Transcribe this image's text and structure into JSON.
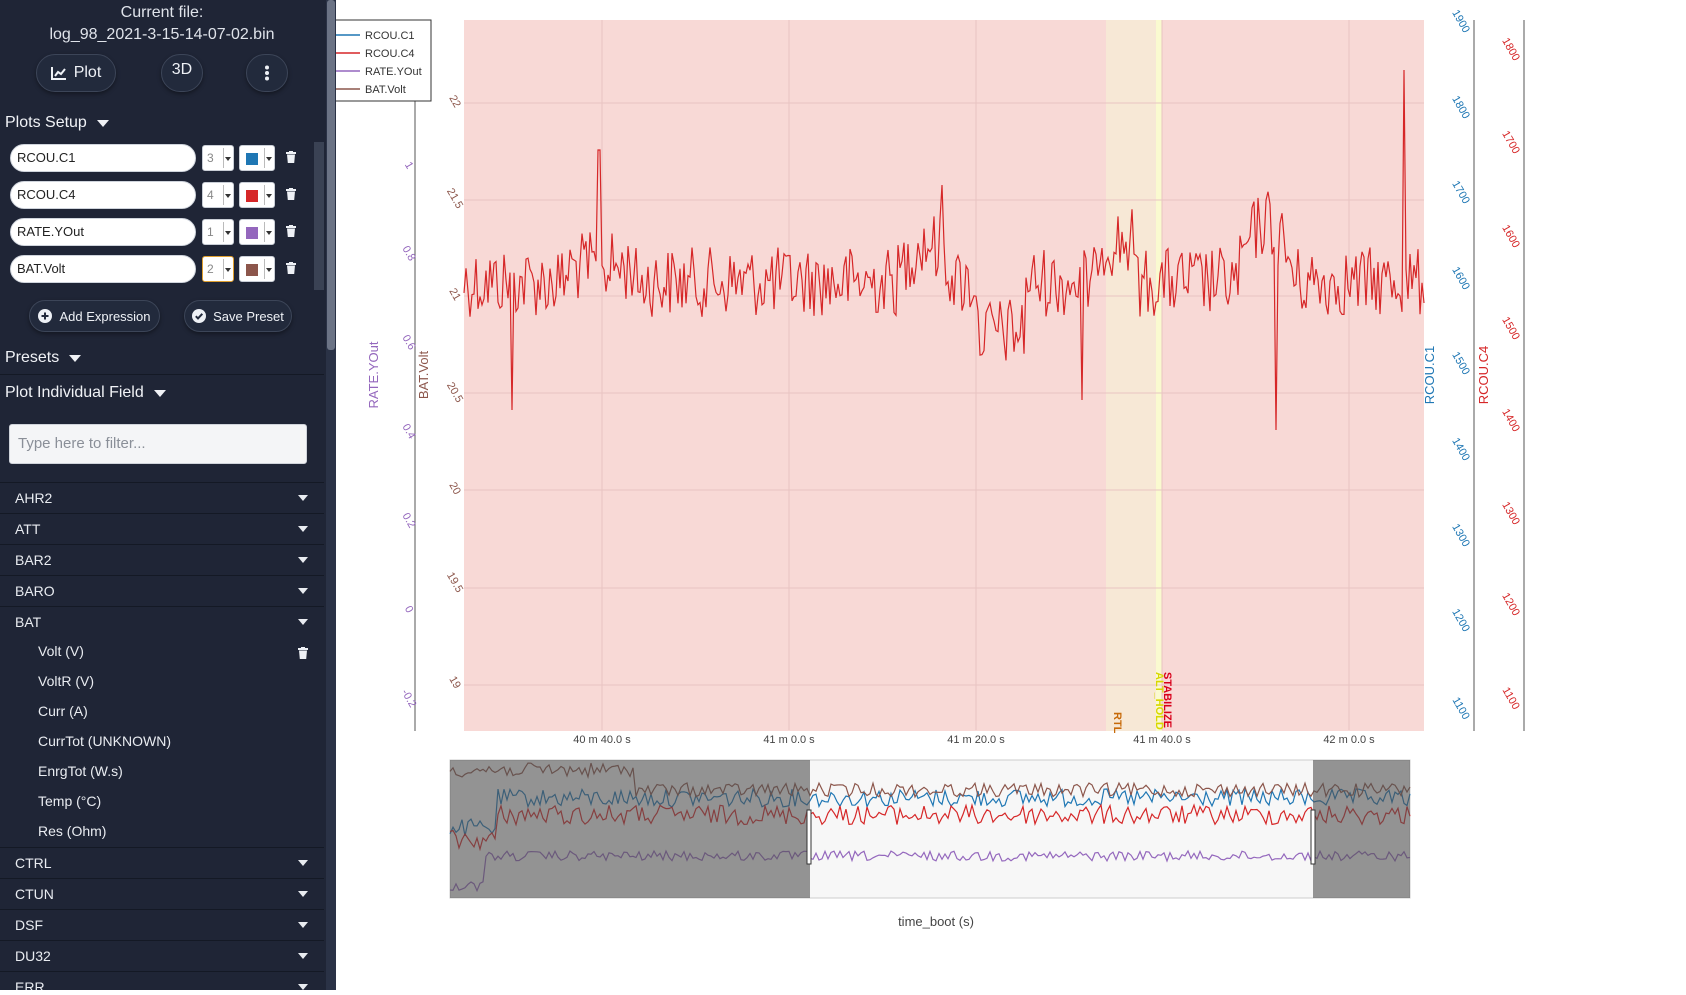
{
  "file": {
    "label": "Current file:",
    "name": "log_98_2021-3-15-14-07-02.bin"
  },
  "buttons": {
    "plot": "Plot",
    "three_d": "3D"
  },
  "plots_setup": {
    "title": "Plots Setup",
    "expressions": [
      {
        "name": "RCOU.C1",
        "axis": "3",
        "color": "#1f77b4"
      },
      {
        "name": "RCOU.C4",
        "axis": "4",
        "color": "#d62728"
      },
      {
        "name": "RATE.YOut",
        "axis": "1",
        "color": "#9467bd"
      },
      {
        "name": "BAT.Volt",
        "axis": "2",
        "color": "#8c564b"
      }
    ],
    "add_expression": "Add Expression",
    "save_preset": "Save Preset"
  },
  "presets": {
    "title": "Presets"
  },
  "individual": {
    "title": "Plot Individual Field",
    "filter_placeholder": "Type here to filter...",
    "messages_before": [
      "AHR2",
      "ATT",
      "BAR2",
      "BARO",
      "BAT"
    ],
    "bat_fields": [
      "Volt (V)",
      "VoltR (V)",
      "Curr (A)",
      "CurrTot (UNKNOWN)",
      "EnrgTot (W.s)",
      "Temp (°C)",
      "Res (Ohm)"
    ],
    "messages_after": [
      "CTRL",
      "CTUN",
      "DSF",
      "DU32",
      "ERR"
    ]
  },
  "chart_data": {
    "type": "line",
    "legend": [
      "RCOU.C1",
      "RCOU.C4",
      "RATE.YOut",
      "BAT.Volt"
    ],
    "legend_position": "top-left",
    "x_ticks": [
      "40 m 40.0 s",
      "41 m 0.0 s",
      "41 m 20.0 s",
      "41 m 40.0 s",
      "42 m 0.0 s"
    ],
    "xlabel": "time_boot (s)",
    "axes": {
      "RATE.YOut": {
        "ticks": [
          "-0.2",
          "0",
          "0.2",
          "0.4",
          "0.6",
          "0.8",
          "1"
        ],
        "color": "#9467bd"
      },
      "BAT.Volt": {
        "ticks": [
          "19",
          "19.5",
          "20",
          "20.5",
          "21",
          "21.5",
          "22"
        ],
        "color": "#8c564b"
      },
      "RCOU.C1": {
        "ticks": [
          "1100",
          "1200",
          "1300",
          "1400",
          "1500",
          "1600",
          "1700",
          "1800",
          "1900"
        ],
        "color": "#1f77b4"
      },
      "RCOU.C4": {
        "ticks": [
          "1100",
          "1200",
          "1300",
          "1400",
          "1500",
          "1600",
          "1700",
          "1800"
        ],
        "color": "#d62728"
      }
    },
    "modes": [
      {
        "name": "RTL",
        "color": "#f8d9d6"
      },
      {
        "name": "ALT_HOLD",
        "color": "#f7e8d6"
      },
      {
        "name": "STABILIZE",
        "color": "#fafad0"
      }
    ],
    "mode_label_colors": {
      "RTL": "#c76a0a",
      "ALT_HOLD": "#d8d800",
      "STABILIZE": "#d8001a"
    }
  }
}
